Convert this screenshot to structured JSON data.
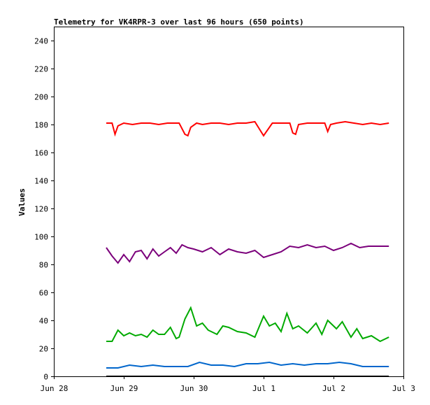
{
  "chart_data": {
    "type": "line",
    "title": "Telemetry for VK4RPR-3 over last 96 hours (650 points)",
    "xlabel": "",
    "ylabel": "Values",
    "ylim": [
      0,
      250
    ],
    "y_ticks": [
      0,
      20,
      40,
      60,
      80,
      100,
      120,
      140,
      160,
      180,
      200,
      220,
      240
    ],
    "xlim": [
      "2024-06-28",
      "2024-07-03"
    ],
    "x_ticks": [
      {
        "label": "Jun 28",
        "date": "2024-06-28"
      },
      {
        "label": "Jun 29",
        "date": "2024-06-29"
      },
      {
        "label": "Jun 30",
        "date": "2024-06-30"
      },
      {
        "label": "Jul 1",
        "date": "2024-07-01"
      },
      {
        "label": "Jul 2",
        "date": "2024-07-02"
      },
      {
        "label": "Jul 3",
        "date": "2024-07-03"
      }
    ],
    "grid": false,
    "legend": "none",
    "series": [
      {
        "color": "#ff0000",
        "x": [
          "2024-06-28T18:00",
          "2024-06-28T20:00",
          "2024-06-28T21:00",
          "2024-06-28T22:00",
          "2024-06-29T00:00",
          "2024-06-29T03:00",
          "2024-06-29T06:00",
          "2024-06-29T09:00",
          "2024-06-29T12:00",
          "2024-06-29T15:00",
          "2024-06-29T19:00",
          "2024-06-29T21:00",
          "2024-06-29T22:00",
          "2024-06-29T23:00",
          "2024-06-30T01:00",
          "2024-06-30T03:00",
          "2024-06-30T06:00",
          "2024-06-30T09:00",
          "2024-06-30T12:00",
          "2024-06-30T15:00",
          "2024-06-30T18:00",
          "2024-06-30T21:00",
          "2024-07-01T00:00",
          "2024-07-01T03:00",
          "2024-07-01T06:00",
          "2024-07-01T09:00",
          "2024-07-01T10:00",
          "2024-07-01T11:00",
          "2024-07-01T12:00",
          "2024-07-01T15:00",
          "2024-07-01T18:00",
          "2024-07-01T21:00",
          "2024-07-01T22:00",
          "2024-07-01T23:00",
          "2024-07-02T01:00",
          "2024-07-02T04:00",
          "2024-07-02T07:00",
          "2024-07-02T10:00",
          "2024-07-02T13:00",
          "2024-07-02T16:00",
          "2024-07-02T19:00"
        ],
        "values": [
          181,
          181,
          173,
          179,
          181,
          180,
          181,
          181,
          180,
          181,
          181,
          173,
          172,
          178,
          181,
          180,
          181,
          181,
          180,
          181,
          181,
          182,
          172,
          181,
          181,
          181,
          174,
          173,
          180,
          181,
          181,
          181,
          175,
          180,
          181,
          182,
          181,
          180,
          181,
          180,
          181
        ]
      },
      {
        "color": "#7b007b",
        "x": [
          "2024-06-28T18:00",
          "2024-06-28T20:00",
          "2024-06-28T22:00",
          "2024-06-29T00:00",
          "2024-06-29T02:00",
          "2024-06-29T04:00",
          "2024-06-29T06:00",
          "2024-06-29T08:00",
          "2024-06-29T10:00",
          "2024-06-29T12:00",
          "2024-06-29T14:00",
          "2024-06-29T16:00",
          "2024-06-29T18:00",
          "2024-06-29T20:00",
          "2024-06-29T22:00",
          "2024-06-30T00:00",
          "2024-06-30T03:00",
          "2024-06-30T06:00",
          "2024-06-30T09:00",
          "2024-06-30T12:00",
          "2024-06-30T15:00",
          "2024-06-30T18:00",
          "2024-06-30T21:00",
          "2024-07-01T00:00",
          "2024-07-01T03:00",
          "2024-07-01T06:00",
          "2024-07-01T09:00",
          "2024-07-01T12:00",
          "2024-07-01T15:00",
          "2024-07-01T18:00",
          "2024-07-01T21:00",
          "2024-07-02T00:00",
          "2024-07-02T03:00",
          "2024-07-02T06:00",
          "2024-07-02T09:00",
          "2024-07-02T12:00",
          "2024-07-02T15:00",
          "2024-07-02T19:00"
        ],
        "values": [
          92,
          86,
          81,
          87,
          82,
          89,
          90,
          84,
          91,
          86,
          89,
          92,
          88,
          94,
          92,
          91,
          89,
          92,
          87,
          91,
          89,
          88,
          90,
          85,
          87,
          89,
          93,
          92,
          94,
          92,
          93,
          90,
          92,
          95,
          92,
          93,
          93,
          93
        ]
      },
      {
        "color": "#00aa00",
        "x": [
          "2024-06-28T18:00",
          "2024-06-28T20:00",
          "2024-06-28T22:00",
          "2024-06-29T00:00",
          "2024-06-29T02:00",
          "2024-06-29T04:00",
          "2024-06-29T06:00",
          "2024-06-29T08:00",
          "2024-06-29T10:00",
          "2024-06-29T12:00",
          "2024-06-29T14:00",
          "2024-06-29T16:00",
          "2024-06-29T18:00",
          "2024-06-29T19:00",
          "2024-06-29T21:00",
          "2024-06-29T23:00",
          "2024-06-30T01:00",
          "2024-06-30T03:00",
          "2024-06-30T05:00",
          "2024-06-30T08:00",
          "2024-06-30T10:00",
          "2024-06-30T12:00",
          "2024-06-30T15:00",
          "2024-06-30T18:00",
          "2024-06-30T21:00",
          "2024-07-01T00:00",
          "2024-07-01T02:00",
          "2024-07-01T04:00",
          "2024-07-01T06:00",
          "2024-07-01T08:00",
          "2024-07-01T10:00",
          "2024-07-01T12:00",
          "2024-07-01T15:00",
          "2024-07-01T18:00",
          "2024-07-01T20:00",
          "2024-07-01T22:00",
          "2024-07-02T01:00",
          "2024-07-02T03:00",
          "2024-07-02T06:00",
          "2024-07-02T08:00",
          "2024-07-02T10:00",
          "2024-07-02T13:00",
          "2024-07-02T16:00",
          "2024-07-02T19:00"
        ],
        "values": [
          25,
          25,
          33,
          29,
          31,
          29,
          30,
          28,
          33,
          30,
          30,
          35,
          27,
          28,
          41,
          49,
          36,
          38,
          33,
          30,
          36,
          35,
          32,
          31,
          28,
          43,
          36,
          38,
          32,
          45,
          34,
          36,
          31,
          38,
          30,
          40,
          34,
          39,
          28,
          34,
          27,
          29,
          25,
          28
        ]
      },
      {
        "color": "#0066cc",
        "x": [
          "2024-06-28T18:00",
          "2024-06-28T22:00",
          "2024-06-29T02:00",
          "2024-06-29T06:00",
          "2024-06-29T10:00",
          "2024-06-29T14:00",
          "2024-06-29T18:00",
          "2024-06-29T22:00",
          "2024-06-30T02:00",
          "2024-06-30T06:00",
          "2024-06-30T10:00",
          "2024-06-30T14:00",
          "2024-06-30T18:00",
          "2024-06-30T22:00",
          "2024-07-01T02:00",
          "2024-07-01T06:00",
          "2024-07-01T10:00",
          "2024-07-01T14:00",
          "2024-07-01T18:00",
          "2024-07-01T22:00",
          "2024-07-02T02:00",
          "2024-07-02T06:00",
          "2024-07-02T10:00",
          "2024-07-02T14:00",
          "2024-07-02T19:00"
        ],
        "values": [
          6,
          6,
          8,
          7,
          8,
          7,
          7,
          7,
          10,
          8,
          8,
          7,
          9,
          9,
          10,
          8,
          9,
          8,
          9,
          9,
          10,
          9,
          7,
          7,
          7
        ]
      },
      {
        "color": "#000000",
        "x": [
          "2024-06-28T18:00",
          "2024-07-02T19:00"
        ],
        "values": [
          0,
          0
        ]
      }
    ]
  }
}
